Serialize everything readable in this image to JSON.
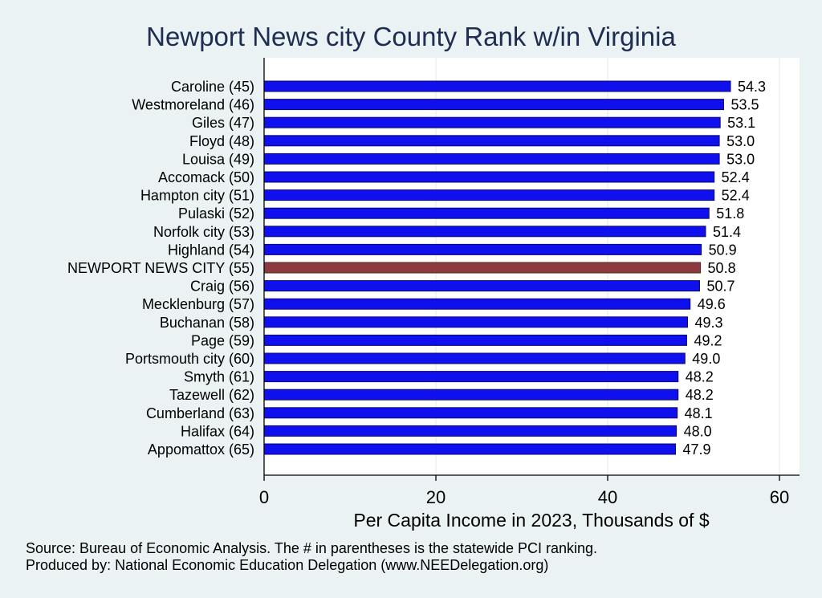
{
  "chart_data": {
    "type": "bar",
    "orientation": "horizontal",
    "title": "Newport News city County Rank w/in Virginia",
    "xlabel": "Per Capita Income in 2023, Thousands of $",
    "xlim": [
      0,
      62
    ],
    "xticks": [
      0,
      20,
      40,
      60
    ],
    "grid": true,
    "legend": "none",
    "categories": [
      "Caroline (45)",
      "Westmoreland (46)",
      "Giles (47)",
      "Floyd (48)",
      "Louisa (49)",
      "Accomack (50)",
      "Hampton city (51)",
      "Pulaski (52)",
      "Norfolk city (53)",
      "Highland (54)",
      "NEWPORT NEWS CITY (55)",
      "Craig (56)",
      "Mecklenburg (57)",
      "Buchanan (58)",
      "Page (59)",
      "Portsmouth city (60)",
      "Smyth (61)",
      "Tazewell (62)",
      "Cumberland (63)",
      "Halifax (64)",
      "Appomattox (65)"
    ],
    "values": [
      54.3,
      53.5,
      53.1,
      53.0,
      53.0,
      52.4,
      52.4,
      51.8,
      51.4,
      50.9,
      50.8,
      50.7,
      49.6,
      49.3,
      49.2,
      49.0,
      48.2,
      48.2,
      48.1,
      48.0,
      47.9
    ],
    "value_labels": [
      "54.3",
      "53.5",
      "53.1",
      "53.0",
      "53.0",
      "52.4",
      "52.4",
      "51.8",
      "51.4",
      "50.9",
      "50.8",
      "50.7",
      "49.6",
      "49.3",
      "49.2",
      "49.0",
      "48.2",
      "48.2",
      "48.1",
      "48.0",
      "47.9"
    ],
    "highlight_index": 10,
    "colors": {
      "bar": "#1010ee",
      "bar_edge": "#0a0a6e",
      "highlight": "#8c3a3f",
      "highlight_edge": "#5a2226",
      "plot_bg": "#ffffff",
      "page_bg": "#eaf2f3",
      "grid": "#e4ecee",
      "title": "#1f2d52"
    }
  },
  "notes": {
    "source": "Source: Bureau of Economic Analysis. The # in parentheses is the statewide PCI ranking.",
    "produced_by": "Produced by: National Economic Education Delegation (www.NEEDelegation.org)"
  }
}
